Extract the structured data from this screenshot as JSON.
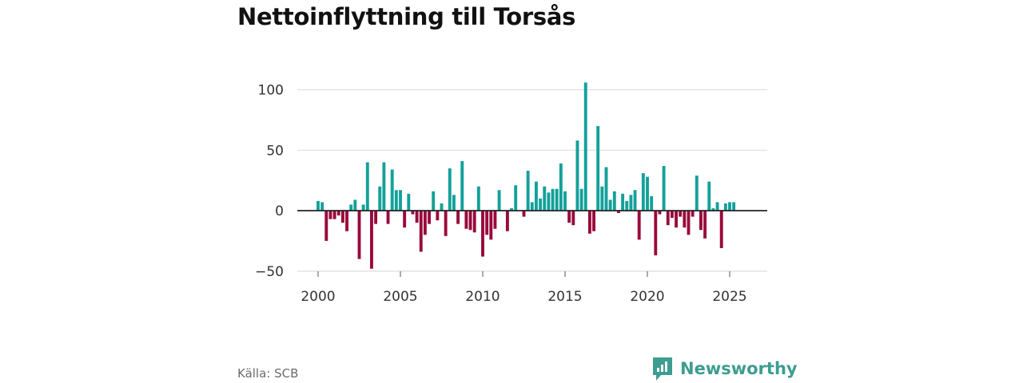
{
  "source": "Källa: SCB",
  "brand": {
    "name": "Newsworthy"
  },
  "colors": {
    "positive": "#13a19a",
    "negative": "#990a3c",
    "grid": "#dcdcdc",
    "zero": "#222222",
    "brand": "#3d9d8f"
  },
  "chart_data": {
    "type": "bar",
    "title": "Nettoinflyttning till Torsås",
    "xlabel": "",
    "ylabel": "",
    "ylim": [
      -55,
      120
    ],
    "yticks": [
      100,
      50,
      0,
      -50
    ],
    "ytick_labels": [
      "100",
      "50",
      "0",
      "−50"
    ],
    "xticks": [
      2000,
      2005,
      2010,
      2015,
      2020,
      2025
    ],
    "xtick_labels": [
      "2000",
      "2005",
      "2010",
      "2015",
      "2020",
      "2025"
    ],
    "grid": true,
    "x_start": 2000,
    "step": 0.25,
    "values": [
      8,
      7,
      -25,
      -7,
      -7,
      -4,
      -10,
      -17,
      5,
      9,
      -40,
      5,
      40,
      -48,
      -11,
      20,
      40,
      -11,
      34,
      17,
      17,
      -14,
      14,
      -3,
      -10,
      -34,
      -20,
      -11,
      16,
      -8,
      6,
      -21,
      35,
      13,
      -11,
      41,
      -15,
      -16,
      -18,
      20,
      -38,
      -20,
      -24,
      -15,
      17,
      0,
      -17,
      2,
      21,
      0,
      -5,
      33,
      7,
      24,
      10,
      20,
      15,
      18,
      18,
      39,
      16,
      -10,
      -12,
      58,
      18,
      106,
      -19,
      -17,
      70,
      20,
      36,
      9,
      16,
      -2,
      14,
      8,
      13,
      17,
      -24,
      31,
      28,
      12,
      -37,
      -3,
      37,
      -12,
      -6,
      -14,
      -5,
      -14,
      -20,
      -5,
      29,
      -16,
      -23,
      24,
      2,
      7,
      -31,
      6,
      7,
      7
    ]
  }
}
